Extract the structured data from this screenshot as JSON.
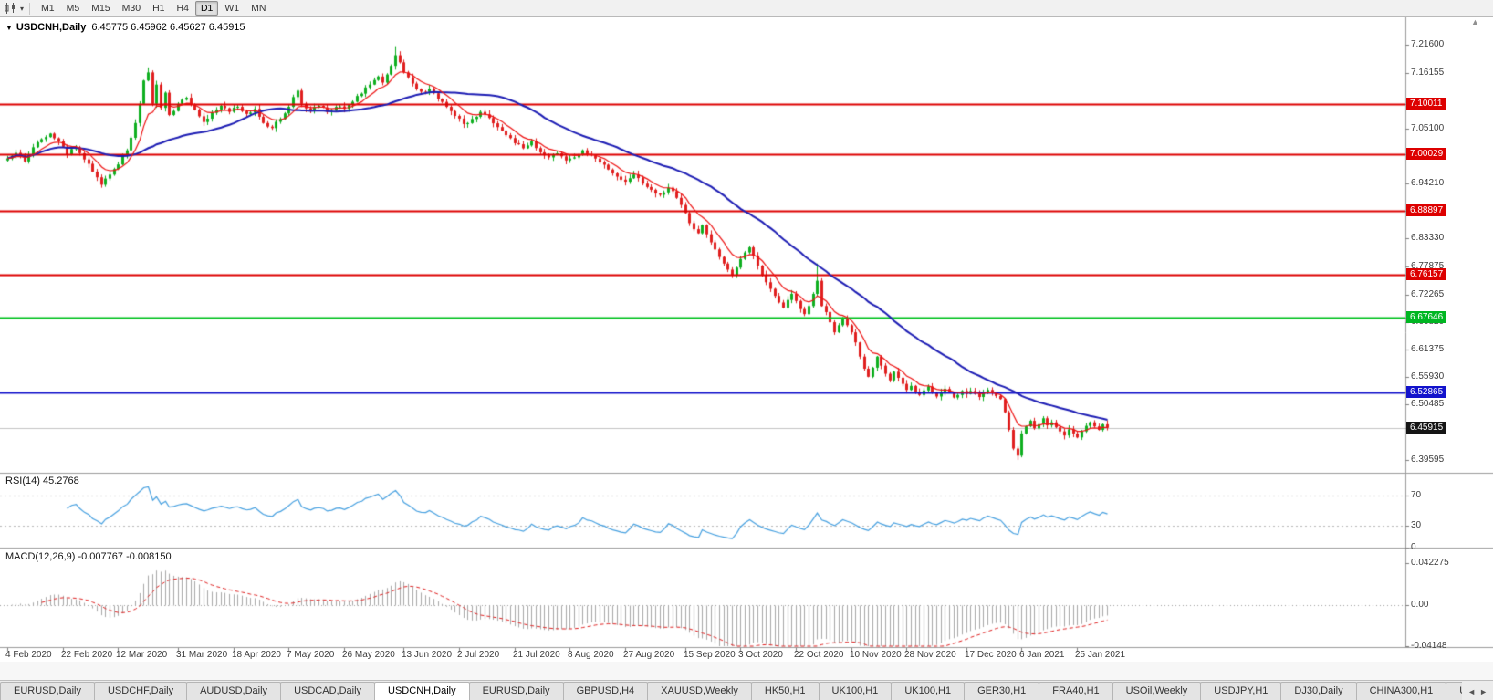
{
  "icons": {
    "chart_menu": "▾",
    "title_marker": "▼",
    "scroll_up": "▲",
    "tab_prev": "◄",
    "tab_next": "►"
  },
  "toolbar": {
    "timeframes": [
      {
        "label": "M1",
        "active": false
      },
      {
        "label": "M5",
        "active": false
      },
      {
        "label": "M15",
        "active": false
      },
      {
        "label": "M30",
        "active": false
      },
      {
        "label": "H1",
        "active": false
      },
      {
        "label": "H4",
        "active": false
      },
      {
        "label": "D1",
        "active": true
      },
      {
        "label": "W1",
        "active": false
      },
      {
        "label": "MN",
        "active": false
      }
    ]
  },
  "chart": {
    "title_symbol": "USDCNH,Daily",
    "title_ohlc": "6.45775 6.45962 6.45627 6.45915",
    "price_axis": [
      {
        "text": "7.21600",
        "price": 7.216,
        "type": "normal"
      },
      {
        "text": "7.16155",
        "price": 7.16155,
        "type": "normal"
      },
      {
        "text": "7.10011",
        "price": 7.10011,
        "type": "red"
      },
      {
        "text": "7.05100",
        "price": 7.051,
        "type": "normal"
      },
      {
        "text": "7.00029",
        "price": 7.00029,
        "type": "red"
      },
      {
        "text": "6.94210",
        "price": 6.9421,
        "type": "normal"
      },
      {
        "text": "6.88897",
        "price": 6.88897,
        "type": "red"
      },
      {
        "text": "6.83330",
        "price": 6.8333,
        "type": "normal"
      },
      {
        "text": "6.77875",
        "price": 6.77875,
        "type": "normal"
      },
      {
        "text": "6.76157",
        "price": 6.76157,
        "type": "red"
      },
      {
        "text": "6.72265",
        "price": 6.72265,
        "type": "normal"
      },
      {
        "text": "6.67646",
        "price": 6.67646,
        "type": "green"
      },
      {
        "text": "6.66820",
        "price": 6.6682,
        "type": "normal"
      },
      {
        "text": "6.61375",
        "price": 6.61375,
        "type": "normal"
      },
      {
        "text": "6.55930",
        "price": 6.5593,
        "type": "normal"
      },
      {
        "text": "6.52865",
        "price": 6.52865,
        "type": "blue"
      },
      {
        "text": "6.50485",
        "price": 6.50485,
        "type": "normal"
      },
      {
        "text": "6.45915",
        "price": 6.45915,
        "type": "current"
      },
      {
        "text": "6.39595",
        "price": 6.39595,
        "type": "normal"
      }
    ],
    "time_axis": [
      {
        "text": "4 Feb 2020",
        "bar": 0
      },
      {
        "text": "22 Feb 2020",
        "bar": 13
      },
      {
        "text": "12 Mar 2020",
        "bar": 26
      },
      {
        "text": "31 Mar 2020",
        "bar": 40
      },
      {
        "text": "18 Apr 2020",
        "bar": 53
      },
      {
        "text": "7 May 2020",
        "bar": 66
      },
      {
        "text": "26 May 2020",
        "bar": 79
      },
      {
        "text": "13 Jun 2020",
        "bar": 93
      },
      {
        "text": "2 Jul 2020",
        "bar": 106
      },
      {
        "text": "21 Jul 2020",
        "bar": 119
      },
      {
        "text": "8 Aug 2020",
        "bar": 132
      },
      {
        "text": "27 Aug 2020",
        "bar": 145
      },
      {
        "text": "15 Sep 2020",
        "bar": 159
      },
      {
        "text": "3 Oct 2020",
        "bar": 172
      },
      {
        "text": "22 Oct 2020",
        "bar": 185
      },
      {
        "text": "10 Nov 2020",
        "bar": 198
      },
      {
        "text": "28 Nov 2020",
        "bar": 211
      },
      {
        "text": "17 Dec 2020",
        "bar": 225
      },
      {
        "text": "6 Jan 2021",
        "bar": 238
      },
      {
        "text": "25 Jan 2021",
        "bar": 251
      }
    ]
  },
  "rsi": {
    "label": "RSI(14) 45.2768",
    "value": 45.2768,
    "levels": [
      {
        "text": "70",
        "value": 70
      },
      {
        "text": "30",
        "value": 30
      },
      {
        "text": "0",
        "value": 0
      }
    ]
  },
  "macd": {
    "label": "MACD(12,26,9) -0.007767 -0.008150",
    "main": -0.007767,
    "signal": -0.00815,
    "axis": [
      {
        "text": "0.042275",
        "value": 0.042275
      },
      {
        "text": "0.00",
        "value": 0
      },
      {
        "text": "-0.04148",
        "value": -0.04148
      }
    ]
  },
  "tab_bar": {
    "tabs": [
      {
        "label": "EURUSD,Daily",
        "active": false
      },
      {
        "label": "USDCHF,Daily",
        "active": false
      },
      {
        "label": "AUDUSD,Daily",
        "active": false
      },
      {
        "label": "USDCAD,Daily",
        "active": false
      },
      {
        "label": "USDCNH,Daily",
        "active": true
      },
      {
        "label": "EURUSD,Daily",
        "active": false
      },
      {
        "label": "GBPUSD,H4",
        "active": false
      },
      {
        "label": "XAUUSD,Weekly",
        "active": false
      },
      {
        "label": "HK50,H1",
        "active": false
      },
      {
        "label": "UK100,H1",
        "active": false
      },
      {
        "label": "UK100,H1",
        "active": false
      },
      {
        "label": "GER30,H1",
        "active": false
      },
      {
        "label": "FRA40,H1",
        "active": false
      },
      {
        "label": "USOil,Weekly",
        "active": false
      },
      {
        "label": "USDJPY,H1",
        "active": false
      },
      {
        "label": "DJ30,Daily",
        "active": false
      },
      {
        "label": "CHINA300,H1",
        "active": false
      },
      {
        "label": "U",
        "active": false
      }
    ]
  },
  "chart_data": {
    "type": "candlestick",
    "symbol": "USDCNH",
    "timeframe": "Daily",
    "title": "USDCNH,Daily",
    "ohlc_current": {
      "open": 6.45775,
      "high": 6.45962,
      "low": 6.45627,
      "close": 6.45915
    },
    "bars_total": 259,
    "price_range": [
      6.372,
      7.262
    ],
    "close_anchors": [
      [
        0,
        6.992
      ],
      [
        2,
        7.003
      ],
      [
        4,
        6.986
      ],
      [
        6,
        7.014
      ],
      [
        8,
        7.03
      ],
      [
        10,
        7.041
      ],
      [
        12,
        7.026
      ],
      [
        14,
        7.0
      ],
      [
        16,
        7.014
      ],
      [
        18,
        6.99
      ],
      [
        20,
        6.966
      ],
      [
        22,
        6.94
      ],
      [
        24,
        6.96
      ],
      [
        26,
        6.98
      ],
      [
        28,
        7.008
      ],
      [
        30,
        7.062
      ],
      [
        31,
        7.1
      ],
      [
        32,
        7.146
      ],
      [
        33,
        7.162
      ],
      [
        34,
        7.1
      ],
      [
        35,
        7.138
      ],
      [
        36,
        7.092
      ],
      [
        37,
        7.122
      ],
      [
        38,
        7.078
      ],
      [
        40,
        7.1
      ],
      [
        42,
        7.112
      ],
      [
        44,
        7.088
      ],
      [
        46,
        7.064
      ],
      [
        48,
        7.082
      ],
      [
        50,
        7.096
      ],
      [
        52,
        7.084
      ],
      [
        54,
        7.094
      ],
      [
        56,
        7.08
      ],
      [
        58,
        7.09
      ],
      [
        60,
        7.062
      ],
      [
        62,
        7.052
      ],
      [
        64,
        7.07
      ],
      [
        66,
        7.094
      ],
      [
        68,
        7.126
      ],
      [
        69,
        7.1
      ],
      [
        71,
        7.086
      ],
      [
        73,
        7.096
      ],
      [
        75,
        7.084
      ],
      [
        77,
        7.094
      ],
      [
        79,
        7.09
      ],
      [
        81,
        7.104
      ],
      [
        83,
        7.12
      ],
      [
        85,
        7.138
      ],
      [
        87,
        7.154
      ],
      [
        88,
        7.142
      ],
      [
        89,
        7.158
      ],
      [
        90,
        7.175
      ],
      [
        91,
        7.196
      ],
      [
        92,
        7.182
      ],
      [
        93,
        7.162
      ],
      [
        95,
        7.14
      ],
      [
        97,
        7.124
      ],
      [
        99,
        7.13
      ],
      [
        101,
        7.11
      ],
      [
        103,
        7.094
      ],
      [
        105,
        7.076
      ],
      [
        107,
        7.06
      ],
      [
        109,
        7.07
      ],
      [
        111,
        7.084
      ],
      [
        113,
        7.072
      ],
      [
        115,
        7.054
      ],
      [
        117,
        7.038
      ],
      [
        119,
        7.022
      ],
      [
        121,
        7.012
      ],
      [
        123,
        7.026
      ],
      [
        125,
        7.004
      ],
      [
        127,
        6.994
      ],
      [
        129,
        7.002
      ],
      [
        131,
        6.988
      ],
      [
        133,
        6.994
      ],
      [
        135,
        7.008
      ],
      [
        137,
        6.998
      ],
      [
        139,
        6.984
      ],
      [
        141,
        6.97
      ],
      [
        143,
        6.956
      ],
      [
        145,
        6.946
      ],
      [
        147,
        6.96
      ],
      [
        149,
        6.942
      ],
      [
        151,
        6.93
      ],
      [
        153,
        6.92
      ],
      [
        155,
        6.934
      ],
      [
        157,
        6.914
      ],
      [
        158,
        6.9
      ],
      [
        159,
        6.884
      ],
      [
        160,
        6.864
      ],
      [
        161,
        6.852
      ],
      [
        162,
        6.844
      ],
      [
        163,
        6.86
      ],
      [
        164,
        6.842
      ],
      [
        165,
        6.826
      ],
      [
        166,
        6.812
      ],
      [
        167,
        6.797
      ],
      [
        168,
        6.784
      ],
      [
        169,
        6.772
      ],
      [
        170,
        6.762
      ],
      [
        171,
        6.776
      ],
      [
        172,
        6.793
      ],
      [
        173,
        6.806
      ],
      [
        174,
        6.816
      ],
      [
        175,
        6.8
      ],
      [
        176,
        6.78
      ],
      [
        177,
        6.762
      ],
      [
        178,
        6.747
      ],
      [
        179,
        6.734
      ],
      [
        180,
        6.72
      ],
      [
        181,
        6.707
      ],
      [
        182,
        6.697
      ],
      [
        183,
        6.712
      ],
      [
        184,
        6.724
      ],
      [
        185,
        6.71
      ],
      [
        186,
        6.694
      ],
      [
        187,
        6.684
      ],
      [
        188,
        6.7
      ],
      [
        189,
        6.724
      ],
      [
        190,
        6.75
      ],
      [
        191,
        6.7
      ],
      [
        192,
        6.688
      ],
      [
        193,
        6.668
      ],
      [
        194,
        6.648
      ],
      [
        195,
        6.662
      ],
      [
        196,
        6.676
      ],
      [
        197,
        6.662
      ],
      [
        198,
        6.648
      ],
      [
        199,
        6.628
      ],
      [
        200,
        6.6
      ],
      [
        201,
        6.576
      ],
      [
        202,
        6.56
      ],
      [
        203,
        6.578
      ],
      [
        204,
        6.6
      ],
      [
        205,
        6.582
      ],
      [
        206,
        6.566
      ],
      [
        207,
        6.553
      ],
      [
        208,
        6.57
      ],
      [
        209,
        6.558
      ],
      [
        210,
        6.546
      ],
      [
        211,
        6.534
      ],
      [
        212,
        6.542
      ],
      [
        213,
        6.53
      ],
      [
        214,
        6.524
      ],
      [
        215,
        6.533
      ],
      [
        216,
        6.541
      ],
      [
        217,
        6.529
      ],
      [
        218,
        6.521
      ],
      [
        219,
        6.529
      ],
      [
        220,
        6.536
      ],
      [
        221,
        6.529
      ],
      [
        222,
        6.519
      ],
      [
        223,
        6.524
      ],
      [
        224,
        6.532
      ],
      [
        225,
        6.526
      ],
      [
        226,
        6.532
      ],
      [
        227,
        6.526
      ],
      [
        228,
        6.52
      ],
      [
        229,
        6.528
      ],
      [
        230,
        6.534
      ],
      [
        231,
        6.528
      ],
      [
        232,
        6.522
      ],
      [
        233,
        6.516
      ],
      [
        234,
        6.49
      ],
      [
        235,
        6.455
      ],
      [
        236,
        6.418
      ],
      [
        237,
        6.404
      ],
      [
        238,
        6.448
      ],
      [
        239,
        6.462
      ],
      [
        240,
        6.473
      ],
      [
        241,
        6.458
      ],
      [
        242,
        6.466
      ],
      [
        243,
        6.478
      ],
      [
        244,
        6.464
      ],
      [
        245,
        6.47
      ],
      [
        246,
        6.46
      ],
      [
        247,
        6.452
      ],
      [
        248,
        6.444
      ],
      [
        249,
        6.456
      ],
      [
        250,
        6.448
      ],
      [
        251,
        6.44
      ],
      [
        252,
        6.452
      ],
      [
        253,
        6.463
      ],
      [
        254,
        6.47
      ],
      [
        255,
        6.462
      ],
      [
        256,
        6.455
      ],
      [
        257,
        6.466
      ],
      [
        258,
        6.459
      ]
    ],
    "wick_spikes": [
      {
        "bar": 33,
        "high": 7.172
      },
      {
        "bar": 91,
        "high": 7.214
      },
      {
        "bar": 190,
        "high": 6.784
      },
      {
        "bar": 237,
        "low": 6.3955
      }
    ],
    "hlines": [
      {
        "price": 7.10011,
        "color": "#dd0000",
        "width": 2
      },
      {
        "price": 7.00029,
        "color": "#dd0000",
        "width": 2
      },
      {
        "price": 6.88897,
        "color": "#dd0000",
        "width": 2
      },
      {
        "price": 6.76157,
        "color": "#dd0000",
        "width": 2
      },
      {
        "price": 6.67646,
        "color": "#00c21e",
        "width": 2
      },
      {
        "price": 6.52865,
        "color": "#1212cc",
        "width": 2
      },
      {
        "price": 6.45915,
        "color": "#c4c4c4",
        "width": 1
      }
    ],
    "moving_averages": [
      {
        "type": "ema",
        "period": 8,
        "color": "#ee1111",
        "width": 1.2
      },
      {
        "type": "sma",
        "period": 34,
        "color": "#1d1db4",
        "width": 2
      }
    ],
    "indicators": [
      {
        "name": "RSI",
        "period": 14,
        "current": 45.2768,
        "range": [
          0,
          100
        ],
        "levels": [
          70,
          30,
          0
        ]
      },
      {
        "name": "MACD",
        "params": [
          12,
          26,
          9
        ],
        "main": -0.007767,
        "signal": -0.00815,
        "axis_max": 0.042275,
        "axis_min": -0.04148
      }
    ],
    "colors": {
      "background": "#ffffff",
      "up": "#0faf20",
      "down": "#e01f1f",
      "rsi_line": "#46a0e0",
      "macd_hist": "#a8a8a8",
      "macd_signal": "#e02020",
      "separator": "#9c9c9c"
    }
  }
}
